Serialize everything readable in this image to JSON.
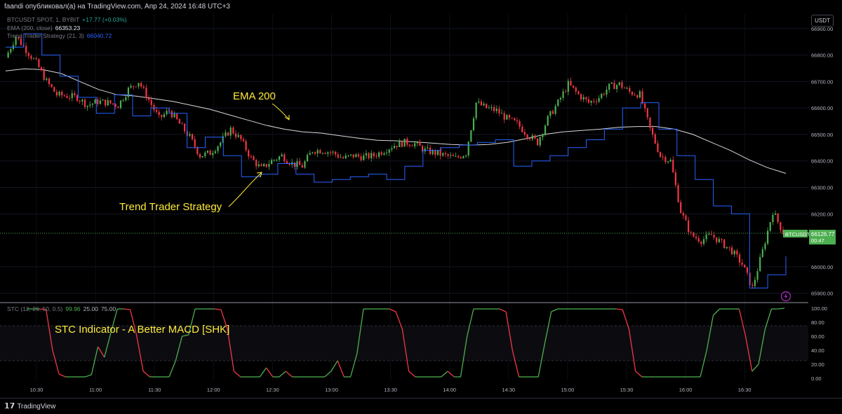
{
  "header": {
    "publish_line": "faandi опубликовал(а) на TradingView.com, Апр 24, 2024 16:48 UTC+3"
  },
  "legend": {
    "symbol": "BTCUSDT SPOT, 1, BYBIT",
    "change": "+17.77 (+0.03%)",
    "ema_label": "EMA (200, close)",
    "ema_value": "66353.23",
    "tts_label": "Trend Trader Strategy (21, 3)",
    "tts_value": "66040.72",
    "stc_label": "STC (12, 26, 50, 0.5)",
    "stc_v1": "99.96",
    "stc_v2": "25.00",
    "stc_v3": "75.00"
  },
  "currency_badge": "USDT",
  "price_tag": {
    "symbol": "BTCUSDT",
    "price": "66126.77",
    "countdown": "00:47"
  },
  "annotations": {
    "ema": "EMA 200",
    "tts": "Trend Trader Strategy",
    "stc": "STC Indicator - A Better MACD [SHK]"
  },
  "footer": {
    "brand": "TradingView"
  },
  "colors": {
    "background": "#000000",
    "up": "#26a69a",
    "up_candle": "#4caf50",
    "down_candle": "#f23645",
    "ema": "#d8d8d8",
    "tts": "#2962ff",
    "stc_up": "#4caf50",
    "stc_down": "#f23645",
    "annotation": "#ffeb3b",
    "price_tag": "#4caf50",
    "lightning": "#9c27b0"
  },
  "icons": {
    "lightning": "lightning-icon",
    "logo": "tradingview-logo-icon"
  },
  "chart_data": [
    {
      "type": "candlestick",
      "title": "",
      "x_ticks": [
        "10:30",
        "11:00",
        "11:30",
        "12:00",
        "12:30",
        "13:00",
        "13:30",
        "14:00",
        "14:30",
        "15:00",
        "15:30",
        "16:00",
        "16:30"
      ],
      "y_ticks": [
        "66900.00",
        "66800.00",
        "66700.00",
        "66600.00",
        "66500.00",
        "66400.00",
        "66300.00",
        "66200.00",
        "66000.00",
        "65900.00"
      ],
      "ylim": [
        65870,
        66955
      ],
      "last_price": 66126.77,
      "close": [
        66790,
        66870,
        66820,
        66770,
        66700,
        66650,
        66645,
        66640,
        66610,
        66625,
        66620,
        66610,
        66670,
        66700,
        66630,
        66560,
        66590,
        66540,
        66490,
        66420,
        66430,
        66470,
        66520,
        66480,
        66410,
        66370,
        66400,
        66420,
        66390,
        66380,
        66440,
        66440,
        66430,
        66410,
        66420,
        66415,
        66420,
        66440,
        66460,
        66470,
        66465,
        66440,
        66430,
        66420,
        66410,
        66430,
        66620,
        66600,
        66590,
        66560,
        66540,
        66500,
        66470,
        66560,
        66620,
        66690,
        66650,
        66620,
        66640,
        66680,
        66690,
        66660,
        66650,
        66520,
        66420,
        66400,
        66210,
        66120,
        66100,
        66120,
        66090,
        66060,
        66010,
        65920,
        66060,
        66210,
        66130
      ],
      "ema_200": [
        66740,
        66748,
        66745,
        66730,
        66700,
        66670,
        66650,
        66645,
        66635,
        66625,
        66610,
        66595,
        66575,
        66555,
        66535,
        66520,
        66510,
        66505,
        66495,
        66486,
        66478,
        66476,
        66472,
        66467,
        66462,
        66460,
        66462,
        66470,
        66484,
        66500,
        66510,
        66515,
        66520,
        66527,
        66530,
        66530,
        66520,
        66500,
        66470,
        66440,
        66405,
        66375,
        66353
      ],
      "trend_trader_strategy": [
        66830,
        66880,
        66800,
        66720,
        66640,
        66580,
        66650,
        66570,
        66600,
        66580,
        66450,
        66490,
        66420,
        66340,
        66350,
        66390,
        66350,
        66320,
        66330,
        66340,
        66350,
        66330,
        66380,
        66440,
        66450,
        66460,
        66470,
        66480,
        66380,
        66400,
        66420,
        66450,
        66480,
        66520,
        66600,
        66620,
        66520,
        66420,
        66330,
        66230,
        66200,
        65920,
        65970,
        66040
      ]
    },
    {
      "type": "line",
      "title": "",
      "series_name": "STC",
      "y_ticks": [
        "100.00",
        "80.00",
        "60.00",
        "40.00",
        "20.00",
        "0.00"
      ],
      "ylim": [
        -3,
        103
      ],
      "levels": [
        25,
        75
      ],
      "values": [
        99,
        99,
        99,
        98,
        40,
        6,
        2,
        2,
        2,
        2,
        5,
        45,
        30,
        65,
        99,
        99,
        98,
        60,
        10,
        2,
        2,
        2,
        2,
        25,
        60,
        62,
        99,
        99,
        99,
        99,
        98,
        70,
        10,
        2,
        2,
        2,
        2,
        15,
        2,
        2,
        10,
        2,
        2,
        2,
        2,
        2,
        2,
        10,
        25,
        2,
        2,
        35,
        99,
        99,
        99,
        99,
        99,
        95,
        70,
        10,
        2,
        2,
        2,
        2,
        2,
        10,
        2,
        2,
        60,
        99,
        99,
        99,
        99,
        99,
        95,
        40,
        2,
        2,
        2,
        2,
        50,
        95,
        99,
        99,
        99,
        99,
        99,
        99,
        99,
        99,
        99,
        99,
        98,
        70,
        10,
        2,
        2,
        2,
        2,
        2,
        2,
        2,
        2,
        2,
        2,
        40,
        90,
        99,
        99,
        99,
        99,
        60,
        10,
        20,
        70,
        99,
        99,
        100
      ]
    }
  ]
}
